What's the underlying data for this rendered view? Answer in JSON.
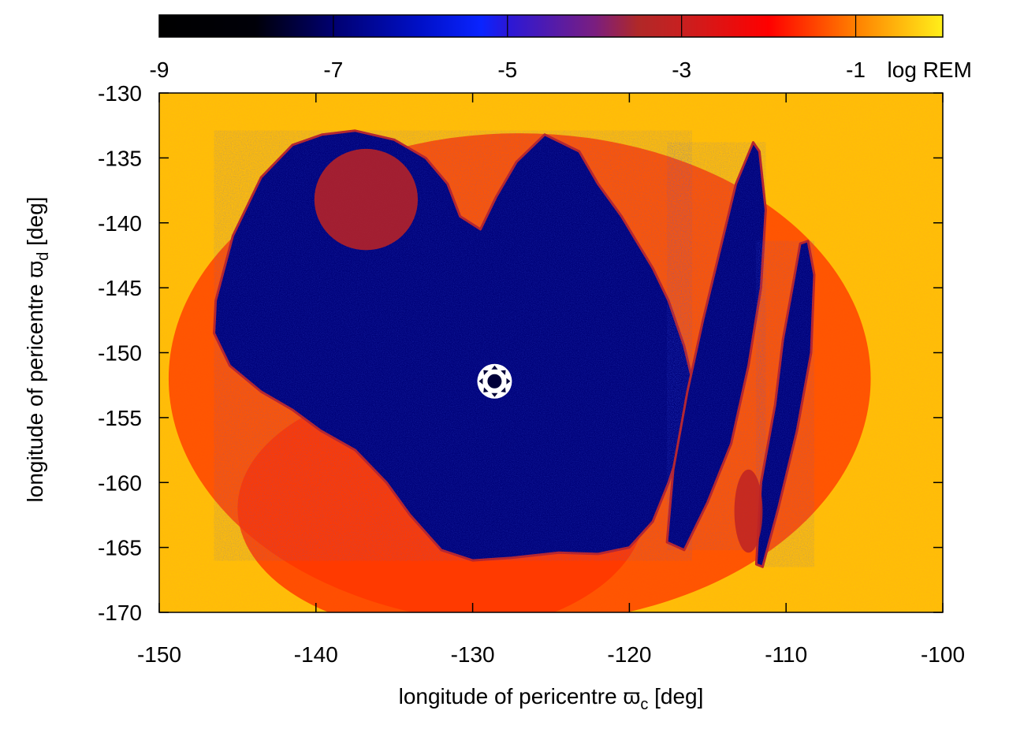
{
  "chart_data": {
    "type": "heatmap",
    "title": "",
    "xlabel": {
      "prefix": "longitude of pericentre ",
      "symbol": "ϖ",
      "subscript": "c",
      "suffix": " [deg]"
    },
    "ylabel": {
      "prefix": "longitude of pericentre ",
      "symbol": "ϖ",
      "subscript": "d",
      "suffix": " [deg]"
    },
    "xlim": [
      -150,
      -100
    ],
    "ylim": [
      -170,
      -130
    ],
    "x_ticks": [
      {
        "value": -150,
        "label": "-150"
      },
      {
        "value": -140,
        "label": "-140"
      },
      {
        "value": -130,
        "label": "-130"
      },
      {
        "value": -120,
        "label": "-120"
      },
      {
        "value": -110,
        "label": "-110"
      },
      {
        "value": -100,
        "label": "-100"
      }
    ],
    "y_ticks": [
      {
        "value": -130,
        "label": "-130"
      },
      {
        "value": -135,
        "label": "-135"
      },
      {
        "value": -140,
        "label": "-140"
      },
      {
        "value": -145,
        "label": "-145"
      },
      {
        "value": -150,
        "label": "-150"
      },
      {
        "value": -155,
        "label": "-155"
      },
      {
        "value": -160,
        "label": "-160"
      },
      {
        "value": -165,
        "label": "-165"
      },
      {
        "value": -170,
        "label": "-170"
      }
    ],
    "colorbar": {
      "label": "log REM",
      "range": [
        -9,
        0
      ],
      "placement": "top",
      "ticks": [
        {
          "value": -9,
          "label": "-9"
        },
        {
          "value": -7,
          "label": "-7"
        },
        {
          "value": -5,
          "label": "-5"
        },
        {
          "value": -3,
          "label": "-3"
        },
        {
          "value": -1,
          "label": "-1"
        }
      ],
      "stops": [
        {
          "value": -9,
          "color": "#000000"
        },
        {
          "value": -7.9,
          "color": "#000008"
        },
        {
          "value": -7,
          "color": "#000070"
        },
        {
          "value": -6,
          "color": "#0010c8"
        },
        {
          "value": -5.3,
          "color": "#0a24ff"
        },
        {
          "value": -5,
          "color": "#2a18d8"
        },
        {
          "value": -4,
          "color": "#7a1e80"
        },
        {
          "value": -3.5,
          "color": "#b02828"
        },
        {
          "value": -3,
          "color": "#c82020"
        },
        {
          "value": -2,
          "color": "#ff0000"
        },
        {
          "value": -1,
          "color": "#ff8000"
        },
        {
          "value": 0,
          "color": "#ffef1a"
        }
      ]
    },
    "regions": {
      "background_log_rem": -0.5,
      "chaotic_zone_log_rem": -1.6,
      "stable_log_rem": -6.9,
      "boundary_log_rem": -3.2,
      "stable_bands": [
        {
          "name": "main-island",
          "points": [
            [
              -146.4,
              -146
            ],
            [
              -145.3,
              -141
            ],
            [
              -143.5,
              -136.5
            ],
            [
              -141.5,
              -134
            ],
            [
              -139.6,
              -133.2
            ],
            [
              -137.5,
              -132.9
            ],
            [
              -135,
              -133.6
            ],
            [
              -133,
              -135
            ],
            [
              -131.6,
              -137
            ],
            [
              -130.8,
              -139.5
            ],
            [
              -129.5,
              -140.5
            ],
            [
              -128.5,
              -138
            ],
            [
              -127.2,
              -135.3
            ],
            [
              -125.4,
              -133.2
            ],
            [
              -123.2,
              -134.5
            ],
            [
              -122,
              -137
            ],
            [
              -120.5,
              -139.5
            ],
            [
              -119.5,
              -141.5
            ],
            [
              -118.5,
              -143.5
            ],
            [
              -117.5,
              -146
            ],
            [
              -116.5,
              -149.5
            ],
            [
              -116,
              -152
            ],
            [
              -116.4,
              -156
            ],
            [
              -117.5,
              -160
            ],
            [
              -118.5,
              -163
            ],
            [
              -120,
              -165
            ],
            [
              -122,
              -165.5
            ],
            [
              -124.5,
              -165.4
            ],
            [
              -127.5,
              -165.8
            ],
            [
              -130,
              -166
            ],
            [
              -132,
              -165.2
            ],
            [
              -134,
              -162.5
            ],
            [
              -135.5,
              -160
            ],
            [
              -137.5,
              -157.5
            ],
            [
              -139.7,
              -156
            ],
            [
              -141.5,
              -154.4
            ],
            [
              -143.5,
              -153
            ],
            [
              -145.5,
              -151
            ],
            [
              -146.5,
              -148.5
            ]
          ]
        },
        {
          "name": "right-band-1",
          "points": [
            [
              -117.6,
              -164.6
            ],
            [
              -117.2,
              -159
            ],
            [
              -116.3,
              -153
            ],
            [
              -115.3,
              -147.5
            ],
            [
              -114.2,
              -142
            ],
            [
              -113.2,
              -137
            ],
            [
              -112.1,
              -133.8
            ],
            [
              -111.7,
              -134.5
            ],
            [
              -111.3,
              -139
            ],
            [
              -111.6,
              -145
            ],
            [
              -112.4,
              -151
            ],
            [
              -113.5,
              -157
            ],
            [
              -115,
              -161.5
            ],
            [
              -116.5,
              -165.2
            ]
          ]
        },
        {
          "name": "right-band-2",
          "points": [
            [
              -111.9,
              -166.3
            ],
            [
              -111.6,
              -160
            ],
            [
              -110.7,
              -154
            ],
            [
              -110.2,
              -149
            ],
            [
              -109.6,
              -145
            ],
            [
              -109.1,
              -141.6
            ],
            [
              -108.6,
              -141.4
            ],
            [
              -108.2,
              -144
            ],
            [
              -108.4,
              -150
            ],
            [
              -109.3,
              -156
            ],
            [
              -110.5,
              -162
            ],
            [
              -111.5,
              -166.5
            ]
          ]
        }
      ],
      "chaotic_patches": [
        {
          "name": "upper-left-swirl",
          "cx": -136.8,
          "cy": -138.2,
          "rx": 3.3,
          "ry": 3.9
        },
        {
          "name": "lower-right-gap",
          "cx": -112.4,
          "cy": -162.2,
          "rx": 0.9,
          "ry": 3.2
        }
      ]
    },
    "marker": {
      "x": -128.6,
      "y": -152.2
    }
  }
}
